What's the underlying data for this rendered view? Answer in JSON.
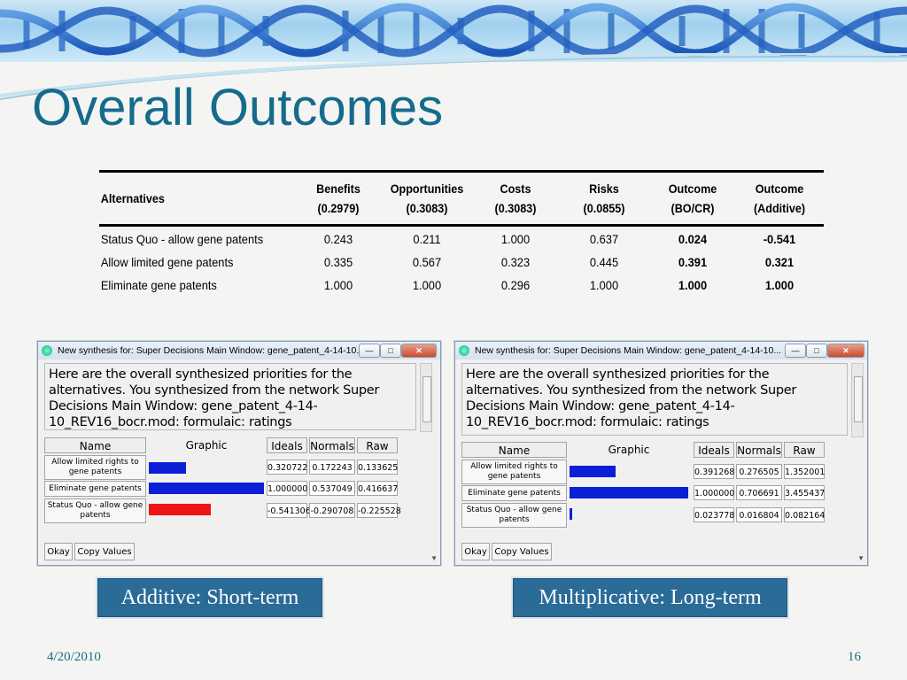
{
  "slide": {
    "title": "Overall Outcomes",
    "date": "4/20/2010",
    "page_number": "16"
  },
  "outcomes_table": {
    "headers": [
      {
        "line1": "Alternatives",
        "line2": ""
      },
      {
        "line1": "Benefits",
        "line2": "(0.2979)"
      },
      {
        "line1": "Opportunities",
        "line2": "(0.3083)"
      },
      {
        "line1": "Costs",
        "line2": "(0.3083)"
      },
      {
        "line1": "Risks",
        "line2": "(0.0855)"
      },
      {
        "line1": "Outcome",
        "line2": "(BO/CR)"
      },
      {
        "line1": "Outcome",
        "line2": "(Additive)"
      }
    ],
    "rows": [
      {
        "alt": "Status Quo - allow gene patents",
        "benefits": "0.243",
        "opportunities": "0.211",
        "costs": "1.000",
        "risks": "0.637",
        "bocr": "0.024",
        "additive": "-0.541"
      },
      {
        "alt": "Allow limited gene patents",
        "benefits": "0.335",
        "opportunities": "0.567",
        "costs": "0.323",
        "risks": "0.445",
        "bocr": "0.391",
        "additive": "0.321"
      },
      {
        "alt": "Eliminate gene patents",
        "benefits": "1.000",
        "opportunities": "1.000",
        "costs": "0.296",
        "risks": "1.000",
        "bocr": "1.000",
        "additive": "1.000"
      }
    ]
  },
  "windows": [
    {
      "title": "New synthesis for: Super Decisions Main Window: gene_patent_4-14-10...",
      "message": "Here are the overall synthesized priorities for the alternatives. You synthesized from the network Super Decisions Main Window: gene_patent_4-14-10_REV16_bocr.mod: formulaic: ratings",
      "columns": {
        "name": "Name",
        "graphic": "Graphic",
        "ideals": "Ideals",
        "normals": "Normals",
        "raw": "Raw"
      },
      "rows": [
        {
          "name": "Allow limited rights to gene patents",
          "ideals": "0.320722",
          "normals": "0.172243",
          "raw": "0.133625",
          "bar_fraction": 0.320722,
          "bar_color": "#0a1fd6"
        },
        {
          "name": "Eliminate gene patents",
          "ideals": "1.000000",
          "normals": "0.537049",
          "raw": "0.416637",
          "bar_fraction": 1.0,
          "bar_color": "#0a1fd6"
        },
        {
          "name": "Status Quo - allow gene patents",
          "ideals": "-0.541306",
          "normals": "-0.290708",
          "raw": "-0.225528",
          "bar_fraction": 0.541306,
          "bar_color": "#f01414"
        }
      ],
      "buttons": {
        "okay": "Okay",
        "copy": "Copy Values"
      }
    },
    {
      "title": "New synthesis for: Super Decisions Main Window: gene_patent_4-14-10...",
      "message": "Here are the overall synthesized priorities for the alternatives. You synthesized from the network Super Decisions Main Window: gene_patent_4-14-10_REV16_bocr.mod: formulaic: ratings",
      "columns": {
        "name": "Name",
        "graphic": "Graphic",
        "ideals": "Ideals",
        "normals": "Normals",
        "raw": "Raw"
      },
      "rows": [
        {
          "name": "Allow limited rights to gene patents",
          "ideals": "0.391268",
          "normals": "0.276505",
          "raw": "1.352001",
          "bar_fraction": 0.391268,
          "bar_color": "#0a1fd6"
        },
        {
          "name": "Eliminate gene patents",
          "ideals": "1.000000",
          "normals": "0.706691",
          "raw": "3.455437",
          "bar_fraction": 1.0,
          "bar_color": "#0a1fd6"
        },
        {
          "name": "Status Quo - allow gene patents",
          "ideals": "0.023778",
          "normals": "0.016804",
          "raw": "0.082164",
          "bar_fraction": 0.023778,
          "bar_color": "#0a1fd6"
        }
      ],
      "buttons": {
        "okay": "Okay",
        "copy": "Copy Values"
      }
    }
  ],
  "captions": {
    "left": "Additive: Short-term",
    "right": "Multiplicative: Long-term"
  }
}
